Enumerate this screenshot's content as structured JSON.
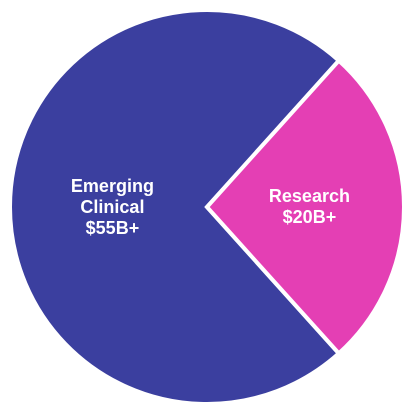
{
  "chart_data": {
    "type": "pie",
    "categories": [
      "Emerging Clinical",
      "Research"
    ],
    "values": [
      55,
      20
    ],
    "value_labels": [
      "$55B+",
      "$20B+"
    ],
    "colors": [
      "#3b3f9f",
      "#e43fb4"
    ]
  }
}
